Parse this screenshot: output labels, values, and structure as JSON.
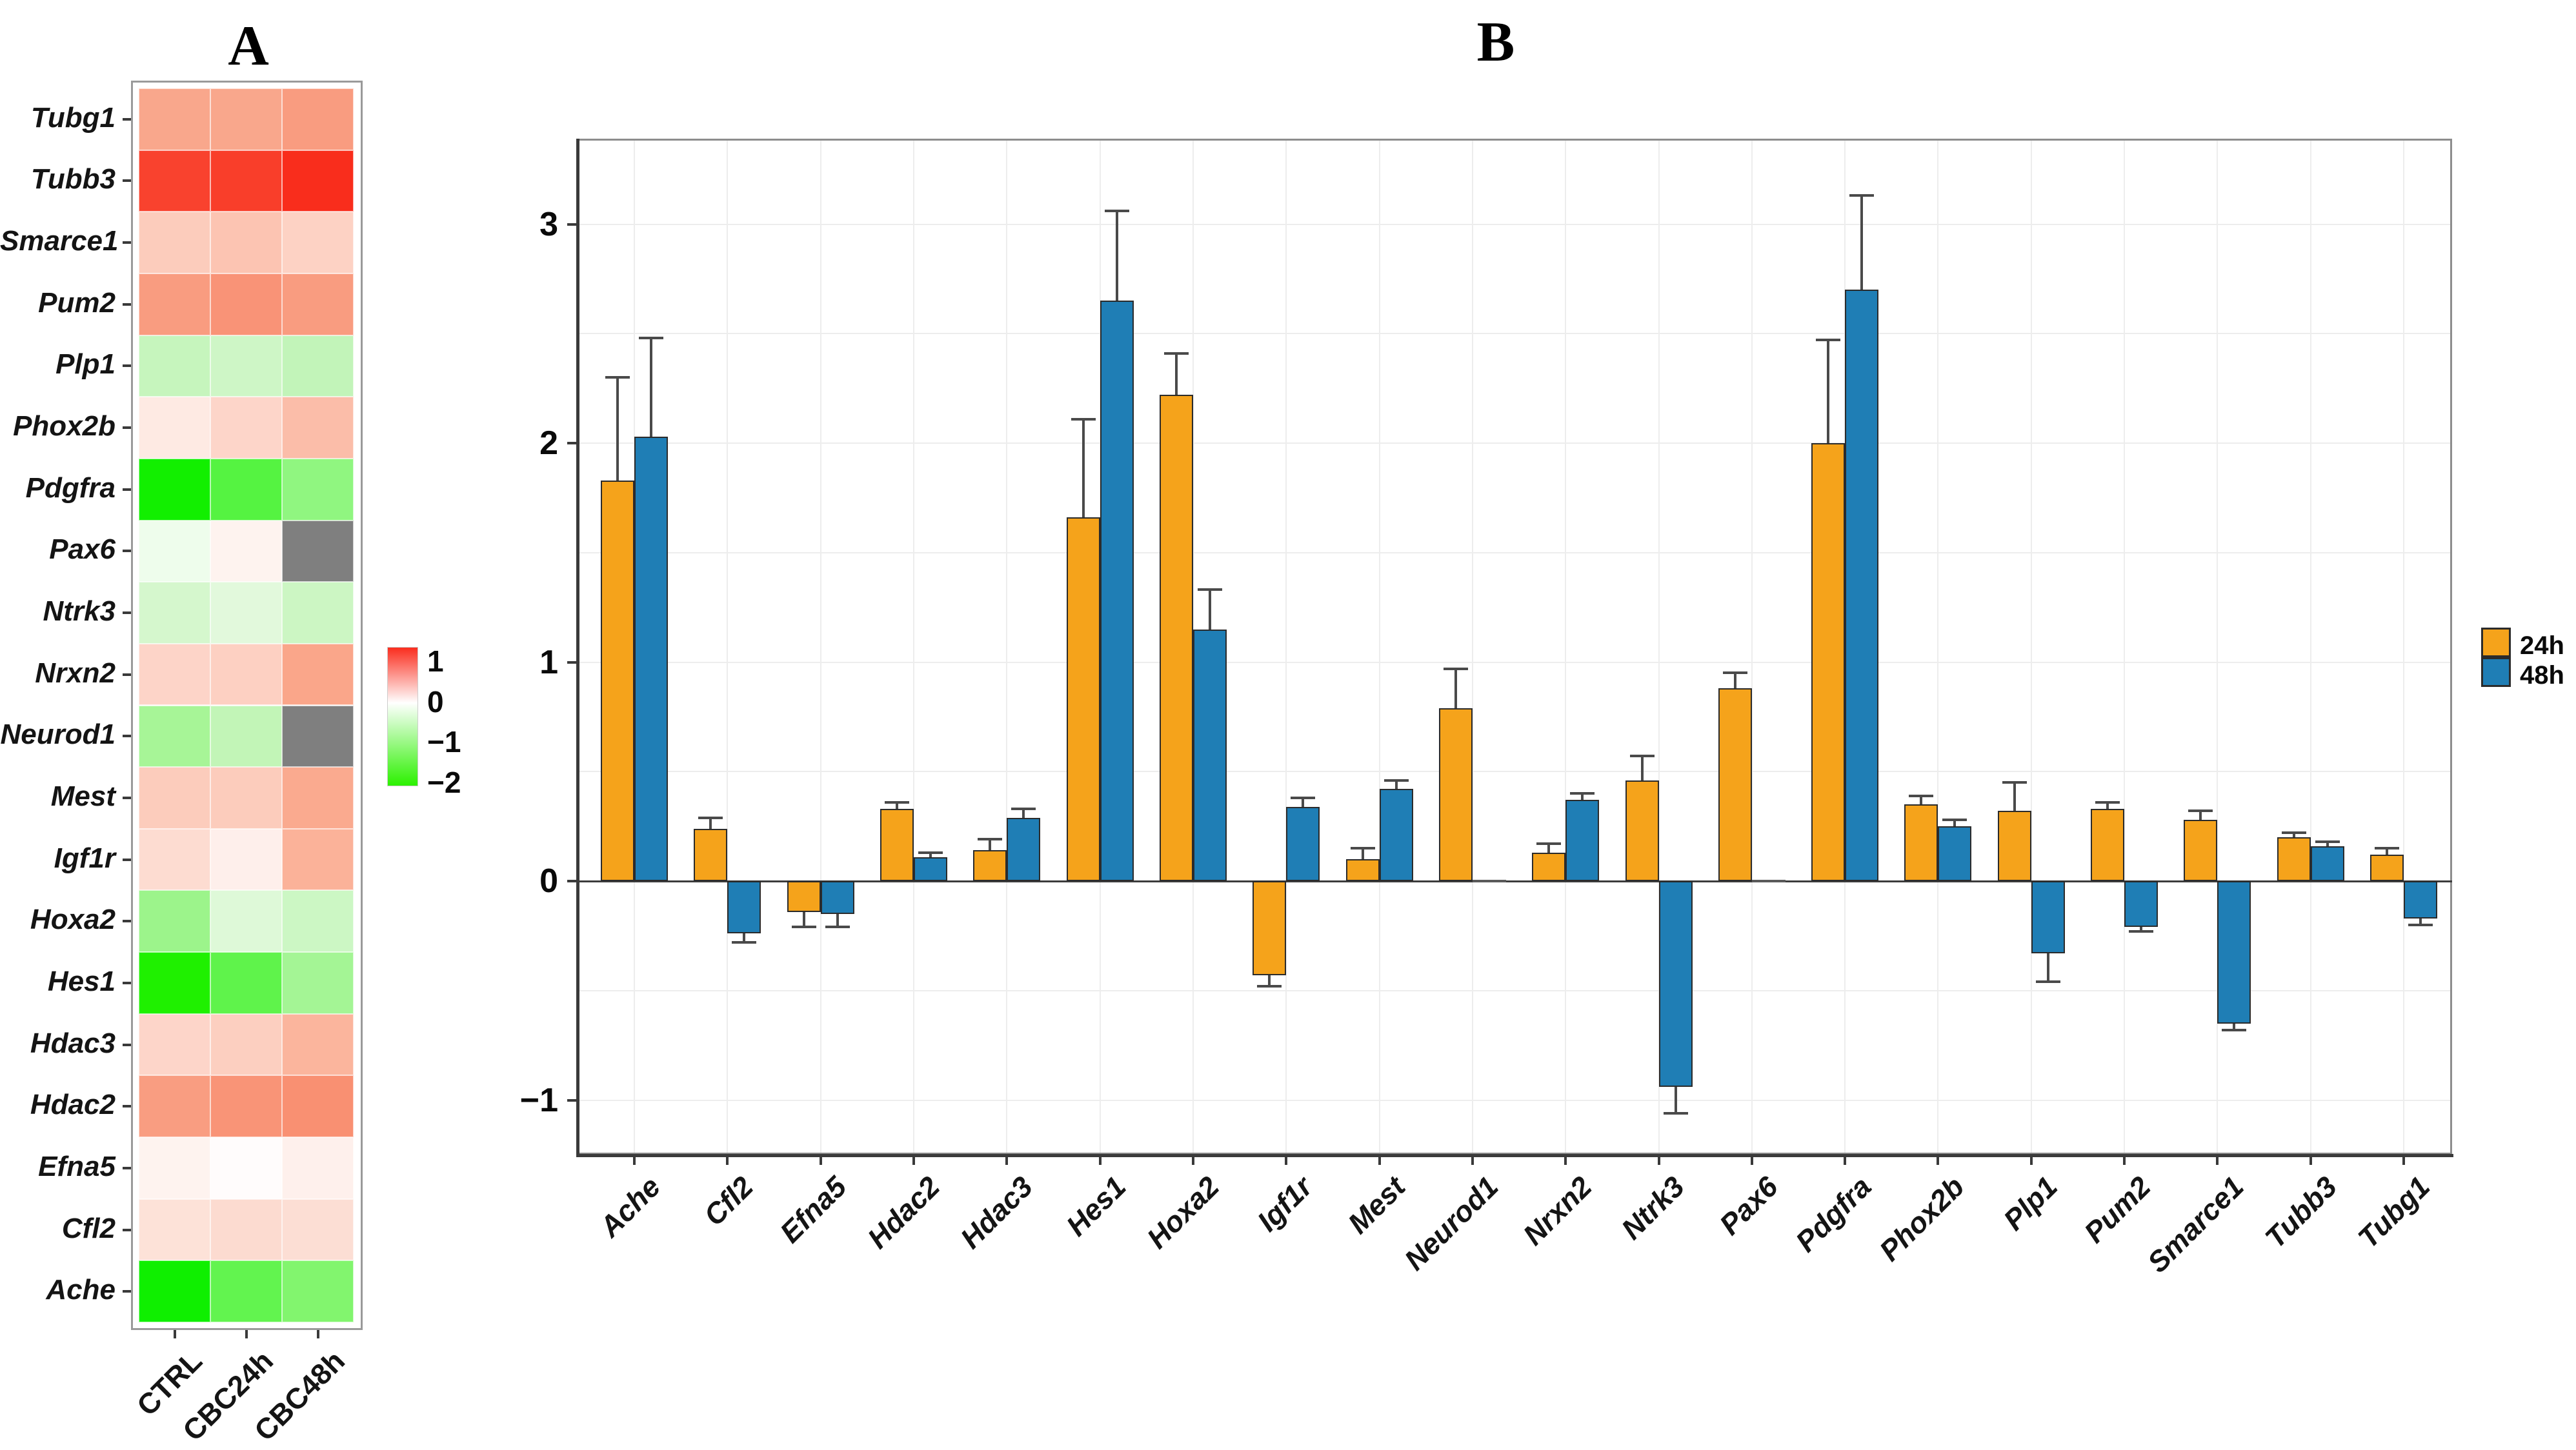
{
  "panel_a": {
    "title": "A",
    "columns": [
      "CTRL",
      "CBC24h",
      "CBC48h"
    ],
    "rows": [
      "Tubg1",
      "Tubb3",
      "Smarce1",
      "Pum2",
      "Plp1",
      "Phox2b",
      "Pdgfra",
      "Pax6",
      "Ntrk3",
      "Nrxn2",
      "Neurod1",
      "Mest",
      "Igf1r",
      "Hoxa2",
      "Hes1",
      "Hdac3",
      "Hdac2",
      "Efna5",
      "Cfl2",
      "Ache"
    ],
    "cell_colors": [
      [
        "#f9a78c",
        "#f9a78c",
        "#f99c80"
      ],
      [
        "#f9422e",
        "#f93e2a",
        "#f92d1c"
      ],
      [
        "#fcccbc",
        "#fcc4b2",
        "#fdd2c4"
      ],
      [
        "#f99c80",
        "#f99377",
        "#f99c80"
      ],
      [
        "#c6f5bd",
        "#cef6c6",
        "#c2f4b9"
      ],
      [
        "#feeae3",
        "#fdd5c9",
        "#fbbda9"
      ],
      [
        "#12ef00",
        "#55f341",
        "#90f680"
      ],
      [
        "#eefdec",
        "#fef3ef",
        "#7f7f7f"
      ],
      [
        "#d5f7cd",
        "#e2f9dc",
        "#ccf6c3"
      ],
      [
        "#fdd4c8",
        "#fdd0c2",
        "#faa68a"
      ],
      [
        "#a7f597",
        "#c2f5b7",
        "#7f7f7f"
      ],
      [
        "#fcccbc",
        "#fcccbc",
        "#faaa8f"
      ],
      [
        "#fddcd1",
        "#feefeb",
        "#fbb299"
      ],
      [
        "#9cf48b",
        "#def9d8",
        "#ccf7c4"
      ],
      [
        "#1ff000",
        "#5ff34b",
        "#a4f595"
      ],
      [
        "#fdd5c9",
        "#fccfc0",
        "#fbb59d"
      ],
      [
        "#f99d81",
        "#f99477",
        "#f99072"
      ],
      [
        "#fef3ef",
        "#fffcfc",
        "#fef0ec"
      ],
      [
        "#fde2d8",
        "#fcdbd0",
        "#fcded4"
      ],
      [
        "#0fef00",
        "#62f44f",
        "#82f56e"
      ]
    ],
    "na_color": "#7f7f7f",
    "legend": {
      "ticks": [
        "1",
        "0",
        "−1",
        "−2"
      ],
      "top_color": "#fa2d1e",
      "mid_color": "#ffffff",
      "bottom_color": "#2cf100"
    }
  },
  "panel_b": {
    "title": "B",
    "y_tick_labels": [
      "3",
      "2",
      "1",
      "0",
      "−1"
    ],
    "legend": [
      {
        "label": "24h",
        "color": "#f5a31b"
      },
      {
        "label": "48h",
        "color": "#1f7eb5"
      }
    ]
  },
  "chart_data": [
    {
      "type": "heatmap",
      "panel": "A",
      "x_labels": [
        "CTRL",
        "CBC24h",
        "CBC48h"
      ],
      "y_labels": [
        "Tubg1",
        "Tubb3",
        "Smarce1",
        "Pum2",
        "Plp1",
        "Phox2b",
        "Pdgfra",
        "Pax6",
        "Ntrk3",
        "Nrxn2",
        "Neurod1",
        "Mest",
        "Igf1r",
        "Hoxa2",
        "Hes1",
        "Hdac3",
        "Hdac2",
        "Efna5",
        "Cfl2",
        "Ache"
      ],
      "colorbar": {
        "max": 1,
        "min": -2,
        "ticks": [
          1,
          0,
          -1,
          -2
        ],
        "max_color": "red",
        "zero_color": "white",
        "min_color": "green",
        "na_color": "gray"
      },
      "values_approx": [
        [
          0.55,
          0.55,
          0.6
        ],
        [
          0.92,
          0.93,
          0.97
        ],
        [
          0.28,
          0.33,
          0.24
        ],
        [
          0.6,
          0.65,
          0.6
        ],
        [
          -0.45,
          -0.38,
          -0.48
        ],
        [
          0.11,
          0.24,
          0.4
        ],
        [
          -1.9,
          -1.35,
          -0.9
        ],
        [
          -0.13,
          0.07,
          null
        ],
        [
          -0.33,
          -0.23,
          -0.4
        ],
        [
          0.24,
          0.27,
          0.56
        ],
        [
          -0.7,
          -0.48,
          null
        ],
        [
          0.28,
          0.28,
          0.52
        ],
        [
          0.2,
          0.09,
          0.47
        ],
        [
          -0.78,
          -0.26,
          -0.4
        ],
        [
          -1.85,
          -1.28,
          -0.72
        ],
        [
          0.24,
          0.29,
          0.45
        ],
        [
          0.6,
          0.66,
          0.69
        ],
        [
          0.07,
          0.02,
          0.09
        ],
        [
          0.17,
          0.22,
          0.19
        ],
        [
          -1.9,
          -1.2,
          -1.0
        ]
      ]
    },
    {
      "type": "bar",
      "panel": "B",
      "categories": [
        "Ache",
        "Cfl2",
        "Efna5",
        "Hdac2",
        "Hdac3",
        "Hes1",
        "Hoxa2",
        "Igf1r",
        "Mest",
        "Neurod1",
        "Nrxn2",
        "Ntrk3",
        "Pax6",
        "Pdgfra",
        "Phox2b",
        "Plp1",
        "Pum2",
        "Smarce1",
        "Tubb3",
        "Tubg1"
      ],
      "series": [
        {
          "name": "24h",
          "color": "#f5a31b",
          "values": [
            1.83,
            0.24,
            -0.14,
            0.33,
            0.14,
            1.66,
            2.22,
            -0.43,
            0.1,
            0.79,
            0.13,
            0.46,
            0.88,
            2.0,
            0.35,
            0.32,
            0.33,
            0.28,
            0.2,
            0.12
          ],
          "errors": [
            0.47,
            0.05,
            0.07,
            0.03,
            0.05,
            0.45,
            0.19,
            0.05,
            0.05,
            0.18,
            0.04,
            0.11,
            0.07,
            0.47,
            0.04,
            0.13,
            0.03,
            0.04,
            0.02,
            0.03
          ]
        },
        {
          "name": "48h",
          "color": "#1f7eb5",
          "values": [
            2.03,
            -0.24,
            -0.15,
            0.11,
            0.29,
            2.65,
            1.15,
            0.34,
            0.42,
            0.0,
            0.37,
            -0.94,
            -0.01,
            2.7,
            0.25,
            -0.33,
            -0.21,
            -0.65,
            0.16,
            -0.17
          ],
          "errors": [
            0.45,
            0.04,
            0.06,
            0.02,
            0.04,
            0.41,
            0.18,
            0.04,
            0.04,
            0.0,
            0.03,
            0.12,
            0.0,
            0.43,
            0.03,
            0.13,
            0.02,
            0.03,
            0.02,
            0.03
          ]
        }
      ],
      "ylim": [
        -1.25,
        3.4
      ],
      "y_ticks": [
        3,
        2,
        1,
        0,
        -1
      ],
      "grid": true,
      "gridline_step": 0.5,
      "legend_position": "right"
    }
  ]
}
